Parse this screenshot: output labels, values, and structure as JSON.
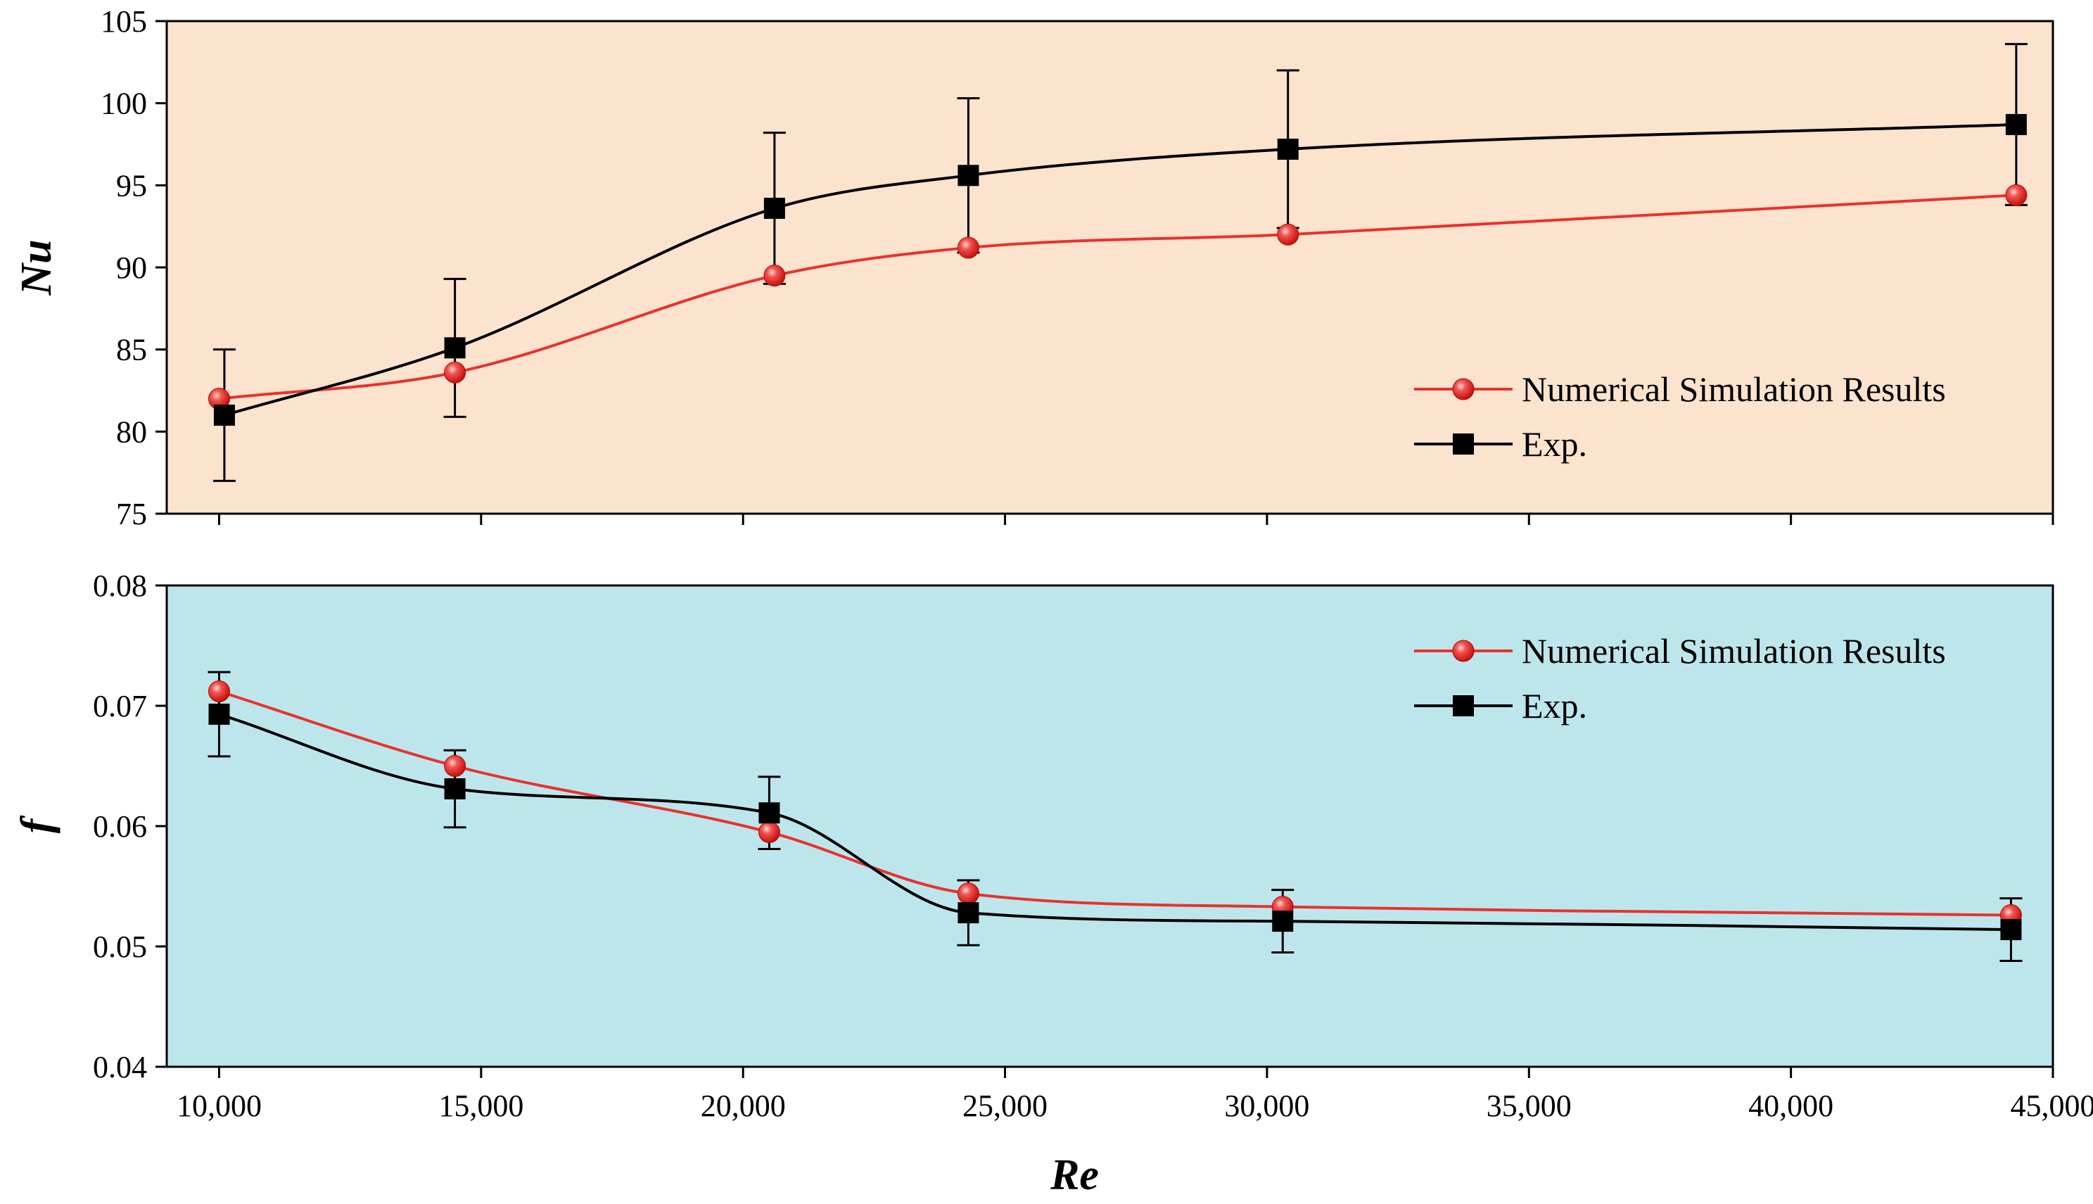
{
  "chart_data": [
    {
      "type": "line",
      "ylabel": "Nu",
      "xlabel": "",
      "xlim": [
        9000,
        45000
      ],
      "ylim": [
        75,
        105
      ],
      "yticks": [
        "75",
        "80",
        "85",
        "90",
        "95",
        "100",
        "105"
      ],
      "grid": false,
      "legend_position": "right",
      "background": "#fbe3ce",
      "series": [
        {
          "name": "Numerical Simulation Results",
          "color": "#e8322f",
          "marker": "circle",
          "x": [
            10000,
            14500,
            20600,
            24300,
            30400,
            44300
          ],
          "y": [
            82.0,
            83.6,
            89.5,
            91.2,
            92.0,
            94.4
          ]
        },
        {
          "name": "Exp.",
          "color": "#000000",
          "marker": "square",
          "x": [
            10100,
            14500,
            20600,
            24300,
            30400,
            44300
          ],
          "y": [
            81.0,
            85.1,
            93.6,
            95.6,
            97.2,
            98.7
          ],
          "error": [
            4.0,
            4.2,
            4.6,
            4.7,
            4.8,
            4.9
          ]
        }
      ]
    },
    {
      "type": "line",
      "ylabel": "f",
      "xlabel": "Re",
      "xlim": [
        9000,
        45000
      ],
      "ylim": [
        0.04,
        0.08
      ],
      "xticks": [
        "10,000",
        "15,000",
        "20,000",
        "25,000",
        "30,000",
        "35,000",
        "40,000",
        "45,000"
      ],
      "yticks": [
        "0.04",
        "0.05",
        "0.06",
        "0.07",
        "0.08"
      ],
      "grid": false,
      "legend_position": "top-right",
      "background": "#bde6ec",
      "series": [
        {
          "name": "Numerical Simulation Results",
          "color": "#e8322f",
          "marker": "circle",
          "x": [
            10000,
            14500,
            20500,
            24300,
            30300,
            44200
          ],
          "y": [
            0.0712,
            0.065,
            0.0595,
            0.0544,
            0.0533,
            0.0526
          ]
        },
        {
          "name": "Exp.",
          "color": "#000000",
          "marker": "square",
          "x": [
            10000,
            14500,
            20500,
            24300,
            30300,
            44200
          ],
          "y": [
            0.0693,
            0.0631,
            0.0611,
            0.0528,
            0.0521,
            0.0514
          ],
          "error": [
            0.0035,
            0.0032,
            0.003,
            0.0027,
            0.0026,
            0.0026
          ]
        }
      ]
    }
  ]
}
